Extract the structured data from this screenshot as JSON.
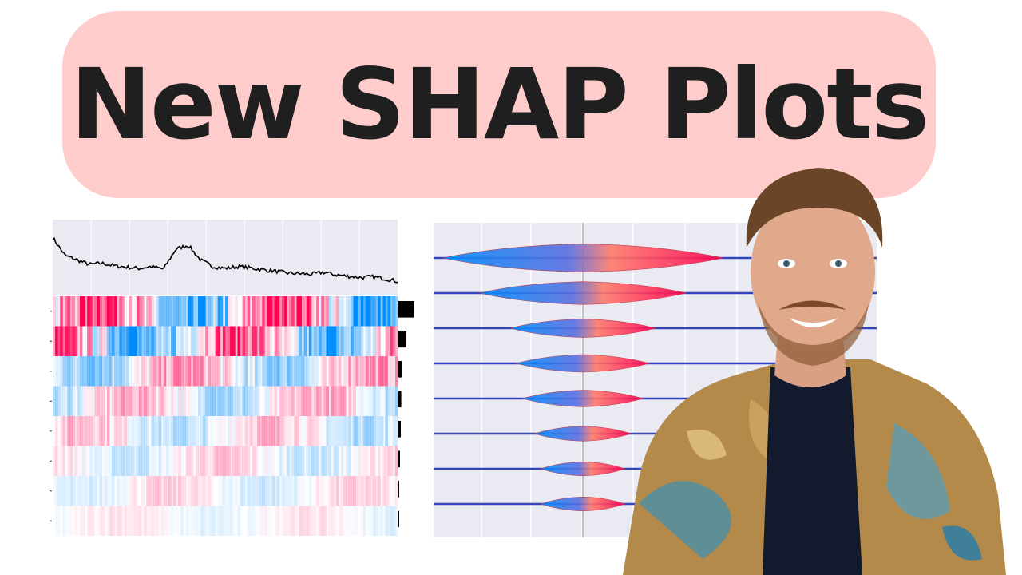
{
  "title": {
    "text": "New SHAP Plots"
  },
  "colors": {
    "title_background": "#ffcccc",
    "title_text": "#1f1f1f",
    "plot_background": "#eaeaf2",
    "shap_positive": "#ff0052",
    "shap_negative": "#008bfb",
    "baseline_line": "#3344bb",
    "line_trace": "#000000"
  },
  "chart_data": [
    {
      "type": "heatmap",
      "title": "",
      "rows": 8,
      "intensity_by_row": [
        1.0,
        0.8,
        0.45,
        0.35,
        0.3,
        0.22,
        0.18,
        0.12
      ],
      "importance_bars": [
        1.0,
        0.5,
        0.2,
        0.18,
        0.15,
        0.1,
        0.0,
        0.0
      ],
      "top_line": [
        0.9,
        0.62,
        0.55,
        0.48,
        0.5,
        0.46,
        0.44,
        0.42,
        0.45,
        0.41,
        0.72,
        0.78,
        0.55,
        0.45,
        0.42,
        0.45,
        0.43,
        0.4,
        0.38,
        0.35,
        0.34,
        0.33,
        0.36,
        0.32,
        0.3,
        0.28,
        0.29,
        0.26,
        0.22
      ],
      "grid": true
    },
    {
      "type": "violin",
      "title": "",
      "rows": 8,
      "widths": [
        1.0,
        0.7,
        0.45,
        0.4,
        0.35,
        0.25,
        0.2,
        0.2
      ],
      "grid": true
    }
  ]
}
